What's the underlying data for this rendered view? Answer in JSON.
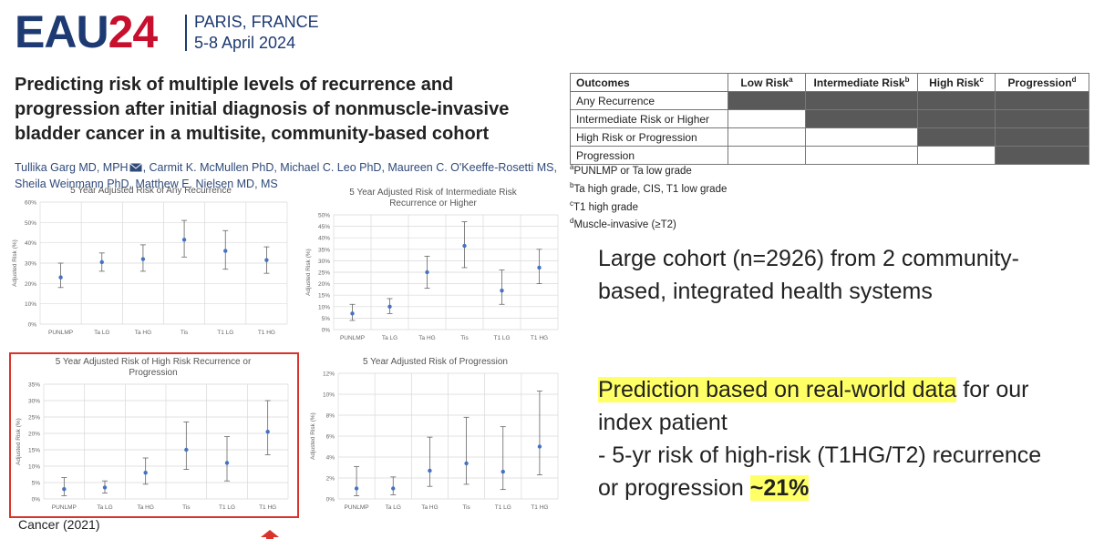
{
  "header": {
    "logo_main": "EAU",
    "logo_year": "24",
    "city": "PARIS, FRANCE",
    "dates": "5-8 April 2024"
  },
  "paper": {
    "title": "Predicting risk of multiple levels of recurrence and progression after initial diagnosis of nonmuscle-invasive bladder cancer in a multisite, community-based cohort",
    "author_lines": [
      "Tullika Garg MD, MPH",
      ", Carmit K. McMullen PhD, Michael C. Leo PhD, Maureen C. O'Keeffe-Rosetti MS,",
      "Sheila Weinmann PhD, Matthew E. Nielsen MD, MS"
    ],
    "citation": "Cancer (2021)"
  },
  "chart_data": [
    {
      "type": "errorbar",
      "title": "5 Year Adjusted Risk of Any Recurrence",
      "y_label": "Adjusted Risk (%)",
      "categories": [
        "PUNLMP",
        "Ta LG",
        "Ta HG",
        "Tis",
        "T1 LG",
        "T1 HG"
      ],
      "values": [
        23,
        30.5,
        32,
        41.5,
        36,
        31.5
      ],
      "ci_low": [
        18,
        26,
        26,
        33,
        27,
        25
      ],
      "ci_high": [
        30,
        35,
        39,
        51,
        46,
        38
      ],
      "ylim": [
        0,
        60
      ],
      "yticks": [
        {
          "value": 0,
          "label": "0%"
        },
        {
          "value": 10,
          "label": "10%"
        },
        {
          "value": 20,
          "label": "20%"
        },
        {
          "value": 30,
          "label": "30%"
        },
        {
          "value": 40,
          "label": "40%"
        },
        {
          "value": 50,
          "label": "50%"
        },
        {
          "value": 60,
          "label": "60%"
        }
      ],
      "color": "#4472c4",
      "grid": true
    },
    {
      "type": "errorbar",
      "title": "5 Year Adjusted Risk of Intermediate Risk Recurrence or Higher",
      "y_label": "Adjusted Risk (%)",
      "categories": [
        "PUNLMP",
        "Ta LG",
        "Ta HG",
        "Tis",
        "T1 LG",
        "T1 HG"
      ],
      "values": [
        7,
        10,
        25,
        36.5,
        17,
        27
      ],
      "ci_low": [
        4,
        7,
        18,
        27,
        11,
        20
      ],
      "ci_high": [
        11,
        13.5,
        32,
        47,
        26,
        35
      ],
      "ylim": [
        0,
        50
      ],
      "yticks": [
        {
          "value": 0,
          "label": "0%"
        },
        {
          "value": 5,
          "label": "5%"
        },
        {
          "value": 10,
          "label": "10%"
        },
        {
          "value": 15,
          "label": "15%"
        },
        {
          "value": 20,
          "label": "20%"
        },
        {
          "value": 25,
          "label": "25%"
        },
        {
          "value": 30,
          "label": "30%"
        },
        {
          "value": 35,
          "label": "35%"
        },
        {
          "value": 40,
          "label": "40%"
        },
        {
          "value": 45,
          "label": "45%"
        },
        {
          "value": 50,
          "label": "50%"
        }
      ],
      "color": "#4472c4",
      "grid": true
    },
    {
      "type": "errorbar",
      "title": "5 Year Adjusted Risk of High Risk Recurrence or Progression",
      "y_label": "Adjusted Risk (%)",
      "categories": [
        "PUNLMP",
        "Ta LG",
        "Ta HG",
        "Tis",
        "T1 LG",
        "T1 HG"
      ],
      "values": [
        3,
        3.5,
        8,
        15,
        11,
        20.5
      ],
      "ci_low": [
        1,
        1.8,
        4.5,
        9,
        5.5,
        13.5
      ],
      "ci_high": [
        6.5,
        5.5,
        12.5,
        23.5,
        19,
        30
      ],
      "ylim": [
        0,
        35
      ],
      "yticks": [
        {
          "value": 0,
          "label": "0%"
        },
        {
          "value": 5,
          "label": "5%"
        },
        {
          "value": 10,
          "label": "10%"
        },
        {
          "value": 15,
          "label": "15%"
        },
        {
          "value": 20,
          "label": "20%"
        },
        {
          "value": 25,
          "label": "25%"
        },
        {
          "value": 30,
          "label": "30%"
        },
        {
          "value": 35,
          "label": "35%"
        }
      ],
      "color": "#4472c4",
      "grid": true
    },
    {
      "type": "errorbar",
      "title": "5 Year Adjusted Risk of Progression",
      "y_label": "Adjusted Risk (%)",
      "categories": [
        "PUNLMP",
        "Ta LG",
        "Ta HG",
        "Tis",
        "T1 LG",
        "T1 HG"
      ],
      "values": [
        1.0,
        1.0,
        2.7,
        3.4,
        2.6,
        5.0
      ],
      "ci_low": [
        0.3,
        0.4,
        1.2,
        1.4,
        0.9,
        2.3
      ],
      "ci_high": [
        3.1,
        2.1,
        5.9,
        7.8,
        6.9,
        10.3
      ],
      "ylim": [
        0,
        12
      ],
      "yticks": [
        {
          "value": 0,
          "label": "0%"
        },
        {
          "value": 2,
          "label": "2%"
        },
        {
          "value": 4,
          "label": "4%"
        },
        {
          "value": 6,
          "label": "6%"
        },
        {
          "value": 8,
          "label": "8%"
        },
        {
          "value": 10,
          "label": "10%"
        },
        {
          "value": 12,
          "label": "12%"
        }
      ],
      "color": "#4472c4",
      "grid": true
    }
  ],
  "table": {
    "header": [
      {
        "text": "Outcomes"
      },
      {
        "text": "Low Risk",
        "note": "a"
      },
      {
        "text": "Intermediate Risk",
        "note": "b"
      },
      {
        "text": "High Risk",
        "note": "c"
      },
      {
        "text": "Progression",
        "note": "d"
      }
    ],
    "rows": [
      {
        "label": "Any Recurrence",
        "shaded": [
          true,
          true,
          true,
          true
        ]
      },
      {
        "label": "Intermediate Risk or Higher",
        "shaded": [
          false,
          true,
          true,
          true
        ]
      },
      {
        "label": "High Risk or Progression",
        "shaded": [
          false,
          false,
          true,
          true
        ]
      },
      {
        "label": "Progression",
        "shaded": [
          false,
          false,
          false,
          true
        ]
      }
    ],
    "shade_color": "#595959",
    "footnotes": [
      {
        "note": "a",
        "text": "PUNLMP or Ta low grade"
      },
      {
        "note": "b",
        "text": "Ta high grade, CIS, T1 low grade"
      },
      {
        "note": "c",
        "text": "T1 high grade"
      },
      {
        "note": "d",
        "text": "Muscle-invasive (≥T2)"
      }
    ]
  },
  "findings": {
    "cohort": "Large cohort (n=2926) from 2 community-based, integrated health systems",
    "prediction_highlight": "Prediction based on real-world data",
    "prediction_rest": "for our index patient",
    "risk_text": "- 5-yr risk of high-risk (T1HG/T2) recurrence or progression",
    "risk_value": "~21%"
  }
}
